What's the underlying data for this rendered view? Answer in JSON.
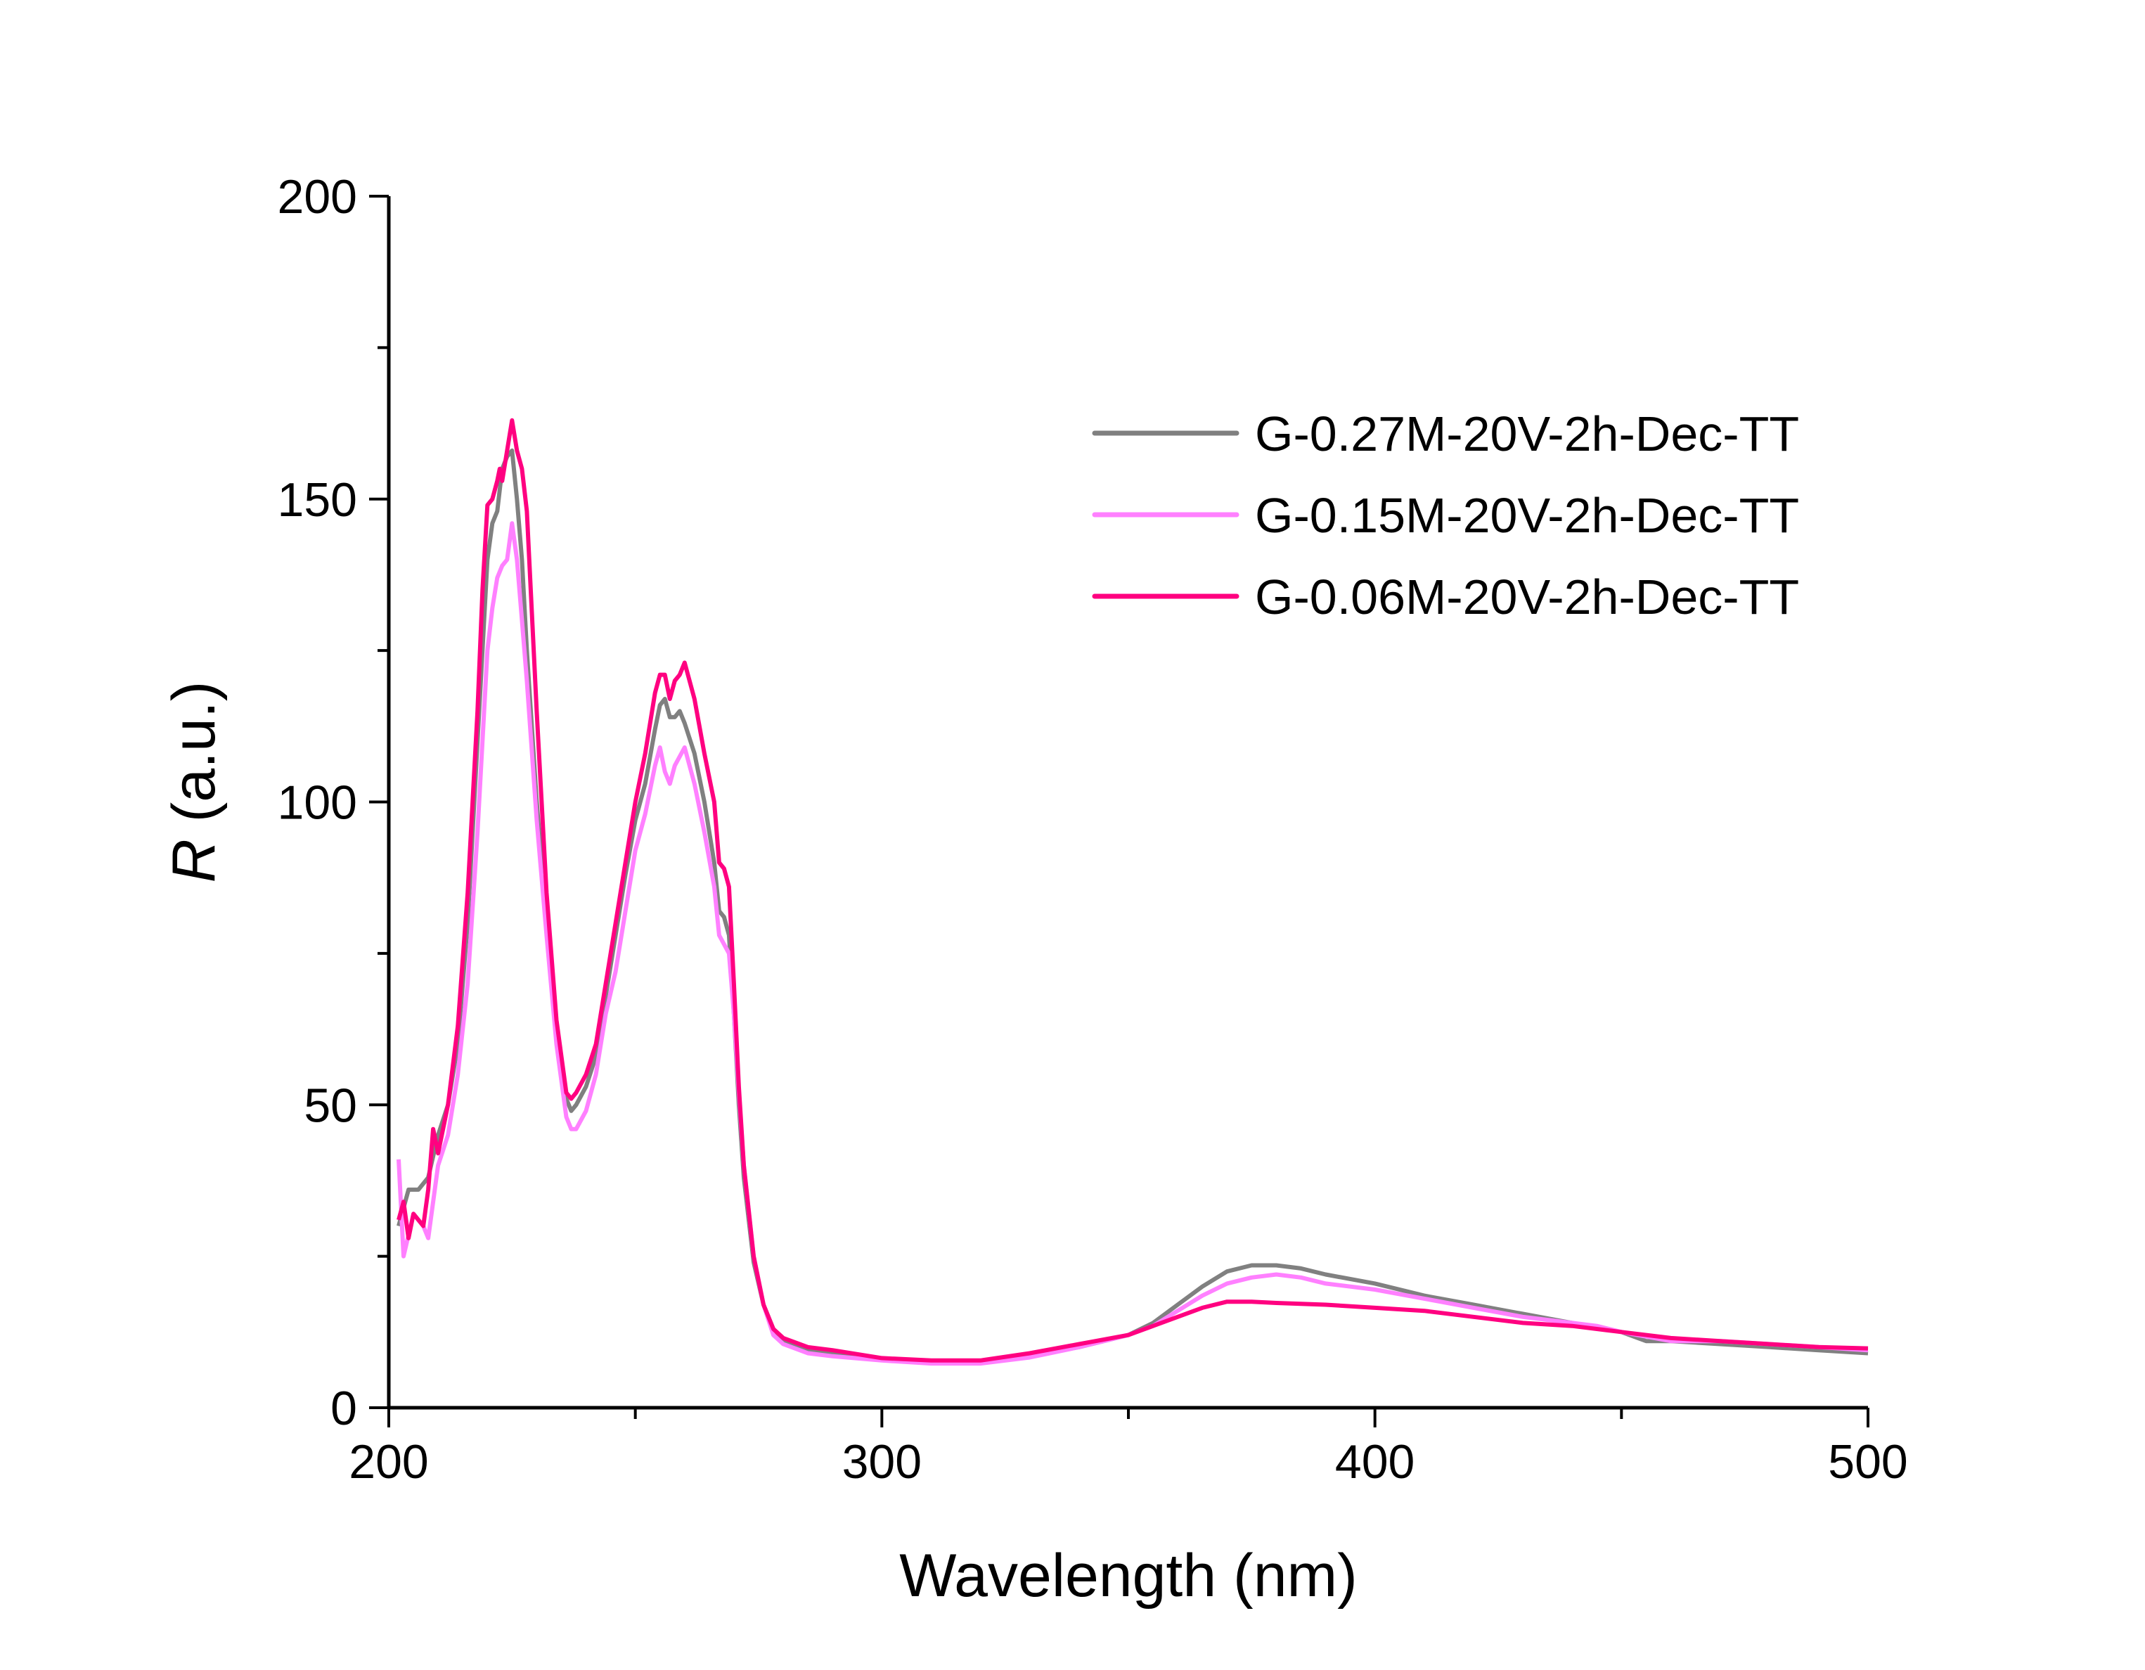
{
  "chart_data": {
    "type": "line",
    "title": "",
    "xlabel": "Wavelength (nm)",
    "ylabel_symbol": "R",
    "ylabel_unit": " (a.u.)",
    "xlim": [
      200,
      500
    ],
    "ylim": [
      0,
      200
    ],
    "xticks": [
      200,
      300,
      400,
      500
    ],
    "xminor": [
      250,
      350,
      450
    ],
    "yticks": [
      0,
      50,
      100,
      150,
      200
    ],
    "yminor": [
      25,
      75,
      125,
      175
    ],
    "grid": false,
    "legend_position": "top-right",
    "series": [
      {
        "name": "G-0.27M-20V-2h-Dec-TT",
        "color": "#808080",
        "x": [
          202,
          204,
          206,
          208,
          210,
          212,
          214,
          216,
          218,
          220,
          221,
          222,
          223,
          224,
          225,
          226,
          227,
          228,
          230,
          232,
          234,
          236,
          237,
          238,
          240,
          242,
          244,
          246,
          248,
          250,
          252,
          254,
          255,
          256,
          257,
          258,
          259,
          260,
          262,
          264,
          266,
          267,
          268,
          269,
          270,
          271,
          272,
          274,
          276,
          278,
          280,
          285,
          290,
          300,
          310,
          320,
          330,
          340,
          350,
          355,
          360,
          365,
          370,
          375,
          380,
          385,
          390,
          400,
          410,
          420,
          430,
          440,
          450,
          455,
          460,
          470,
          480,
          490,
          500
        ],
        "y": [
          30,
          36,
          36,
          38,
          45,
          50,
          60,
          80,
          110,
          140,
          146,
          148,
          155,
          157,
          158,
          150,
          140,
          125,
          100,
          80,
          62,
          51,
          49,
          50,
          53,
          58,
          68,
          78,
          88,
          97,
          103,
          112,
          116,
          117,
          114,
          114,
          115,
          113,
          108,
          100,
          90,
          82,
          81,
          78,
          65,
          50,
          38,
          24,
          17,
          13,
          11,
          9.5,
          9,
          8,
          7.5,
          7.5,
          8.5,
          10,
          12,
          14,
          17,
          20,
          22.5,
          23.5,
          23.5,
          23,
          22,
          20.5,
          18.5,
          17,
          15.5,
          14,
          12.5,
          11,
          11,
          10.5,
          10,
          9.5,
          9
        ]
      },
      {
        "name": "G-0.15M-20V-2h-Dec-TT",
        "color": "#FF80FF",
        "x": [
          202,
          203,
          205,
          207,
          208,
          210,
          212,
          214,
          216,
          218,
          220,
          221,
          222,
          223,
          224,
          225,
          226,
          227,
          228,
          230,
          232,
          234,
          236,
          237,
          238,
          240,
          242,
          244,
          246,
          248,
          250,
          252,
          254,
          255,
          256,
          257,
          258,
          260,
          262,
          264,
          266,
          267,
          269,
          270,
          271,
          272,
          274,
          276,
          278,
          280,
          285,
          290,
          300,
          310,
          320,
          330,
          340,
          350,
          355,
          360,
          365,
          370,
          375,
          380,
          385,
          390,
          400,
          410,
          420,
          430,
          440,
          445,
          450,
          460,
          470,
          480,
          490,
          500
        ],
        "y": [
          41,
          25,
          32,
          30,
          28,
          40,
          45,
          55,
          70,
          95,
          125,
          132,
          137,
          139,
          140,
          146,
          140,
          130,
          120,
          97,
          78,
          60,
          48,
          46,
          46,
          49,
          55,
          65,
          72,
          82,
          92,
          98,
          106,
          109,
          105,
          103,
          106,
          109,
          103,
          95,
          86,
          78,
          75,
          65,
          52,
          40,
          25,
          17,
          12,
          10.5,
          9,
          8.5,
          7.8,
          7.3,
          7.3,
          8.3,
          10,
          12,
          13.5,
          16,
          18.5,
          20.5,
          21.5,
          22,
          21.5,
          20.5,
          19.5,
          18,
          16.5,
          15,
          14,
          13.5,
          12.5,
          11,
          11,
          10.5,
          10,
          9.5
        ]
      },
      {
        "name": "G-0.06M-20V-2h-Dec-TT",
        "color": "#FF0080",
        "x": [
          202,
          203,
          204,
          205,
          207,
          208,
          209,
          210,
          212,
          214,
          216,
          218,
          219,
          220,
          221,
          222,
          222.5,
          223,
          224,
          225,
          226,
          227,
          228,
          230,
          232,
          234,
          236,
          237,
          238,
          240,
          242,
          244,
          246,
          248,
          250,
          252,
          254,
          255,
          256,
          257,
          258,
          259,
          260,
          262,
          264,
          266,
          267,
          268,
          269,
          270,
          271,
          272,
          274,
          276,
          278,
          280,
          285,
          290,
          300,
          310,
          320,
          330,
          340,
          350,
          355,
          360,
          365,
          370,
          375,
          380,
          390,
          400,
          410,
          420,
          430,
          440,
          450,
          460,
          470,
          480,
          490,
          500
        ],
        "y": [
          31,
          34,
          28,
          32,
          30,
          36,
          46,
          42,
          50,
          63,
          85,
          115,
          135,
          149,
          150,
          153,
          155,
          153,
          158,
          163,
          158,
          155,
          148,
          115,
          85,
          64,
          52,
          51,
          52,
          55,
          60,
          70,
          80,
          90,
          100,
          108,
          118,
          121,
          121,
          117,
          120,
          121,
          123,
          117,
          108,
          100,
          90,
          89,
          86,
          70,
          53,
          40,
          25,
          17,
          13,
          11.5,
          10,
          9.5,
          8.2,
          7.8,
          7.8,
          9,
          10.5,
          12,
          13.5,
          15,
          16.5,
          17.5,
          17.5,
          17.3,
          17,
          16.5,
          16,
          15,
          14,
          13.5,
          12.5,
          11.5,
          11,
          10.5,
          10,
          9.8
        ]
      }
    ]
  }
}
